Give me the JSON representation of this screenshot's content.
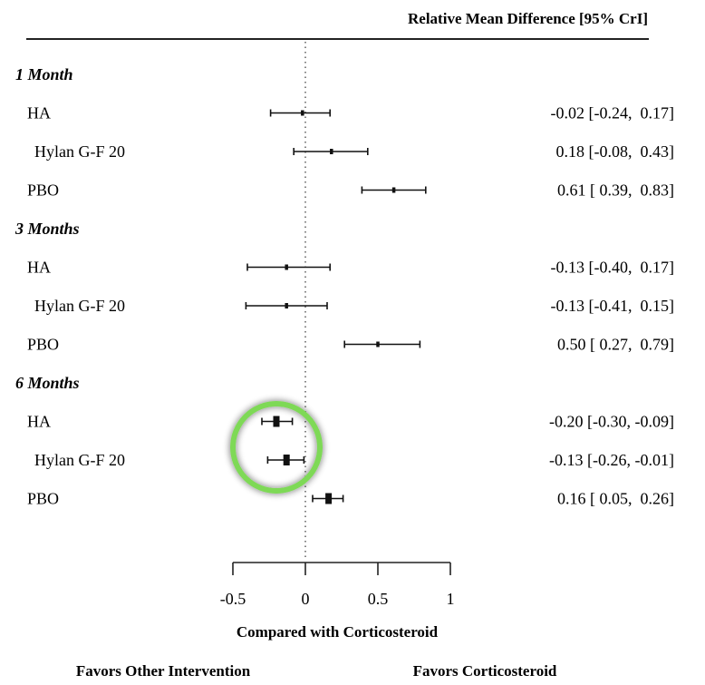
{
  "chart_data": {
    "type": "forest",
    "title": "",
    "header_right": "Relative Mean Difference [95% CrI]",
    "xlabel": "Compared with Corticosteroid",
    "xlim": [
      -0.5,
      1
    ],
    "xticks": [
      -0.5,
      0,
      0.5,
      1
    ],
    "xtick_labels": [
      "-0.5",
      "0",
      "0.5",
      "1"
    ],
    "reference_line": 0,
    "favors_left": "Favors Other Intervention",
    "favors_right": "Favors Corticosteroid",
    "groups": [
      {
        "label": "1 Month",
        "rows": [
          {
            "label": "HA",
            "estimate": -0.02,
            "lower": -0.24,
            "upper": 0.17,
            "text": "-0.02 [-0.24,  0.17]"
          },
          {
            "label": "Hylan G-F 20",
            "estimate": 0.18,
            "lower": -0.08,
            "upper": 0.43,
            "text": "0.18 [-0.08,  0.43]"
          },
          {
            "label": "PBO",
            "estimate": 0.61,
            "lower": 0.39,
            "upper": 0.83,
            "text": "0.61 [ 0.39,  0.83]"
          }
        ]
      },
      {
        "label": "3 Months",
        "rows": [
          {
            "label": "HA",
            "estimate": -0.13,
            "lower": -0.4,
            "upper": 0.17,
            "text": "-0.13 [-0.40,  0.17]"
          },
          {
            "label": "Hylan G-F 20",
            "estimate": -0.13,
            "lower": -0.41,
            "upper": 0.15,
            "text": "-0.13 [-0.41,  0.15]"
          },
          {
            "label": "PBO",
            "estimate": 0.5,
            "lower": 0.27,
            "upper": 0.79,
            "text": "0.50 [ 0.27,  0.79]"
          }
        ]
      },
      {
        "label": "6 Months",
        "rows": [
          {
            "label": "HA",
            "estimate": -0.2,
            "lower": -0.3,
            "upper": -0.09,
            "text": "-0.20 [-0.30, -0.09]"
          },
          {
            "label": "Hylan G-F 20",
            "estimate": -0.13,
            "lower": -0.26,
            "upper": -0.01,
            "text": "-0.13 [-0.26, -0.01]"
          },
          {
            "label": "PBO",
            "estimate": 0.16,
            "lower": 0.05,
            "upper": 0.26,
            "text": "0.16 [ 0.05,  0.26]"
          }
        ]
      }
    ],
    "highlight": {
      "description": "green circle around 6 Months HA and Hylan G-F 20 estimates",
      "color": "#7ED957"
    }
  },
  "colors": {
    "ink": "#111111",
    "highlight": "#7ED957"
  }
}
